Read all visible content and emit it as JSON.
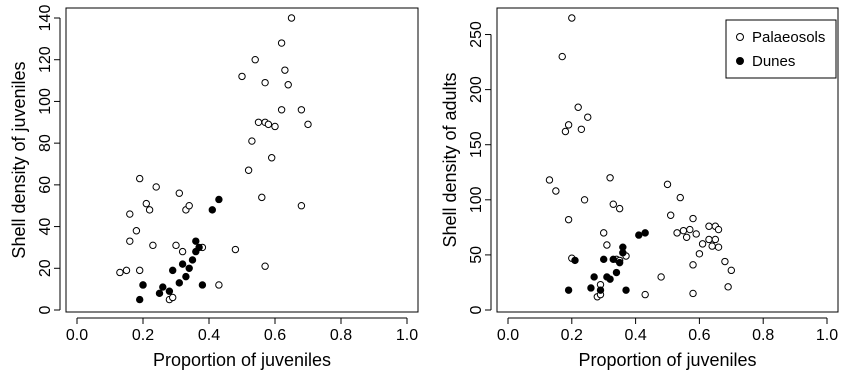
{
  "chart_data": [
    {
      "type": "scatter",
      "title": "",
      "xlabel": "Proportion of juveniles",
      "ylabel": "Shell density of juveniles",
      "xlim": [
        0,
        1
      ],
      "ylim": [
        0,
        140
      ],
      "xticks": [
        "0.0",
        "0.2",
        "0.4",
        "0.6",
        "0.8",
        "1.0"
      ],
      "yticks": [
        "0",
        "20",
        "40",
        "60",
        "80",
        "100",
        "120",
        "140"
      ],
      "grid": false,
      "legend": null,
      "series": [
        {
          "name": "Palaeosols",
          "marker": "open-circle",
          "points": [
            [
              0.13,
              18
            ],
            [
              0.15,
              19
            ],
            [
              0.16,
              33
            ],
            [
              0.16,
              46
            ],
            [
              0.18,
              38
            ],
            [
              0.19,
              63
            ],
            [
              0.19,
              19
            ],
            [
              0.2,
              12
            ],
            [
              0.21,
              51
            ],
            [
              0.22,
              48
            ],
            [
              0.23,
              31
            ],
            [
              0.24,
              59
            ],
            [
              0.28,
              5
            ],
            [
              0.29,
              6
            ],
            [
              0.3,
              31
            ],
            [
              0.31,
              56
            ],
            [
              0.32,
              28
            ],
            [
              0.33,
              48
            ],
            [
              0.34,
              50
            ],
            [
              0.38,
              30
            ],
            [
              0.43,
              12
            ],
            [
              0.48,
              29
            ],
            [
              0.5,
              112
            ],
            [
              0.52,
              67
            ],
            [
              0.53,
              81
            ],
            [
              0.54,
              120
            ],
            [
              0.55,
              90
            ],
            [
              0.56,
              54
            ],
            [
              0.57,
              21
            ],
            [
              0.57,
              90
            ],
            [
              0.57,
              109
            ],
            [
              0.58,
              89
            ],
            [
              0.59,
              73
            ],
            [
              0.6,
              88
            ],
            [
              0.62,
              96
            ],
            [
              0.62,
              128
            ],
            [
              0.63,
              115
            ],
            [
              0.64,
              108
            ],
            [
              0.65,
              140
            ],
            [
              0.68,
              96
            ],
            [
              0.68,
              50
            ],
            [
              0.7,
              89
            ]
          ]
        },
        {
          "name": "Dunes",
          "marker": "filled-circle",
          "points": [
            [
              0.19,
              5
            ],
            [
              0.2,
              12
            ],
            [
              0.25,
              8
            ],
            [
              0.26,
              11
            ],
            [
              0.28,
              9
            ],
            [
              0.29,
              19
            ],
            [
              0.31,
              13
            ],
            [
              0.32,
              22
            ],
            [
              0.33,
              16
            ],
            [
              0.34,
              20
            ],
            [
              0.35,
              24
            ],
            [
              0.36,
              28
            ],
            [
              0.37,
              30
            ],
            [
              0.36,
              33
            ],
            [
              0.38,
              12
            ],
            [
              0.41,
              48
            ],
            [
              0.43,
              53
            ]
          ]
        }
      ]
    },
    {
      "type": "scatter",
      "title": "",
      "xlabel": "Proportion of juveniles",
      "ylabel": "Shell density of adults",
      "xlim": [
        0,
        1
      ],
      "ylim": [
        0,
        265
      ],
      "xticks": [
        "0.0",
        "0.2",
        "0.4",
        "0.6",
        "0.8",
        "1.0"
      ],
      "yticks": [
        "0",
        "50",
        "100",
        "150",
        "200",
        "250"
      ],
      "grid": false,
      "legend": "top-right",
      "legend_entries": [
        "Palaeosols",
        "Dunes"
      ],
      "series": [
        {
          "name": "Palaeosols",
          "marker": "open-circle",
          "points": [
            [
              0.13,
              118
            ],
            [
              0.15,
              108
            ],
            [
              0.17,
              230
            ],
            [
              0.18,
              162
            ],
            [
              0.19,
              168
            ],
            [
              0.19,
              82
            ],
            [
              0.2,
              265
            ],
            [
              0.2,
              47
            ],
            [
              0.22,
              184
            ],
            [
              0.23,
              164
            ],
            [
              0.24,
              100
            ],
            [
              0.25,
              175
            ],
            [
              0.28,
              12
            ],
            [
              0.29,
              14
            ],
            [
              0.29,
              23
            ],
            [
              0.3,
              70
            ],
            [
              0.31,
              59
            ],
            [
              0.32,
              120
            ],
            [
              0.33,
              96
            ],
            [
              0.34,
              46
            ],
            [
              0.35,
              45
            ],
            [
              0.35,
              92
            ],
            [
              0.37,
              49
            ],
            [
              0.43,
              14
            ],
            [
              0.48,
              30
            ],
            [
              0.5,
              114
            ],
            [
              0.51,
              86
            ],
            [
              0.53,
              70
            ],
            [
              0.54,
              102
            ],
            [
              0.55,
              72
            ],
            [
              0.56,
              66
            ],
            [
              0.57,
              73
            ],
            [
              0.58,
              15
            ],
            [
              0.58,
              41
            ],
            [
              0.58,
              83
            ],
            [
              0.59,
              69
            ],
            [
              0.6,
              51
            ],
            [
              0.61,
              60
            ],
            [
              0.63,
              64
            ],
            [
              0.63,
              76
            ],
            [
              0.64,
              58
            ],
            [
              0.65,
              76
            ],
            [
              0.65,
              64
            ],
            [
              0.66,
              57
            ],
            [
              0.66,
              73
            ],
            [
              0.68,
              44
            ],
            [
              0.69,
              21
            ],
            [
              0.7,
              36
            ]
          ]
        },
        {
          "name": "Dunes",
          "marker": "filled-circle",
          "points": [
            [
              0.19,
              18
            ],
            [
              0.21,
              45
            ],
            [
              0.26,
              20
            ],
            [
              0.27,
              30
            ],
            [
              0.29,
              18
            ],
            [
              0.3,
              46
            ],
            [
              0.31,
              30
            ],
            [
              0.32,
              28
            ],
            [
              0.33,
              46
            ],
            [
              0.34,
              34
            ],
            [
              0.35,
              43
            ],
            [
              0.36,
              57
            ],
            [
              0.36,
              52
            ],
            [
              0.37,
              18
            ],
            [
              0.41,
              68
            ],
            [
              0.43,
              70
            ]
          ]
        }
      ]
    }
  ]
}
